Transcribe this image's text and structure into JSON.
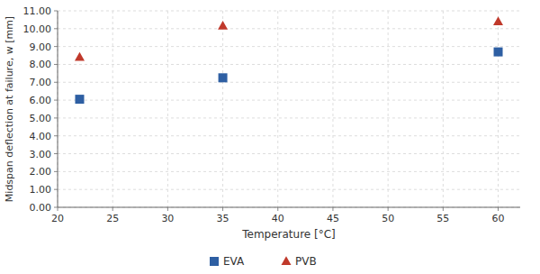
{
  "chart_data": {
    "type": "scatter",
    "xlabel": "Temperature [°C]",
    "ylabel": "Midspan deflection at failure, w [mm]",
    "x": [
      22,
      35,
      60
    ],
    "series": [
      {
        "name": "EVA",
        "color": "#2E5FA3",
        "marker": "square",
        "values": [
          6.05,
          7.25,
          8.7
        ]
      },
      {
        "name": "PVB",
        "color": "#C0392B",
        "marker": "triangle",
        "values": [
          8.4,
          10.15,
          10.4
        ]
      }
    ],
    "xlim": [
      20,
      62
    ],
    "ylim": [
      0.0,
      11.0
    ],
    "xticks": [
      20,
      25,
      30,
      35,
      40,
      45,
      50,
      55,
      60
    ],
    "yticks": [
      {
        "value": 0.0,
        "label": "0.00"
      },
      {
        "value": 1.0,
        "label": "1.00"
      },
      {
        "value": 2.0,
        "label": "2.00"
      },
      {
        "value": 3.0,
        "label": "3.00"
      },
      {
        "value": 4.0,
        "label": "4.00"
      },
      {
        "value": 5.0,
        "label": "5.00"
      },
      {
        "value": 6.0,
        "label": "6.00"
      },
      {
        "value": 7.0,
        "label": "7.00"
      },
      {
        "value": 8.0,
        "label": "8.00"
      },
      {
        "value": 9.0,
        "label": "9.00"
      },
      {
        "value": 10.0,
        "label": "10.00"
      },
      {
        "value": 11.0,
        "label": "11.00"
      }
    ],
    "grid": true,
    "legend": "bottom"
  }
}
